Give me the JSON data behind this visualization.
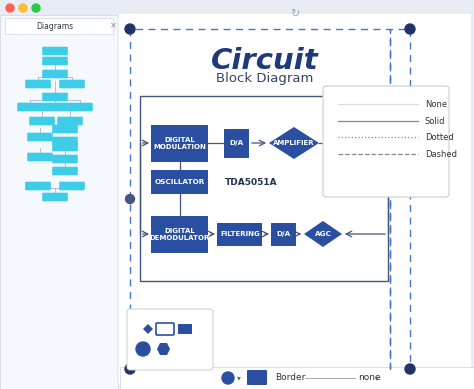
{
  "bg_color": "#eef2f8",
  "sidebar_bg": "#f5f8fc",
  "canvas_bg": "#ffffff",
  "topbar_bg": "#e8ecf4",
  "dark_blue": "#1e3a7a",
  "block_blue": "#2b4fa0",
  "line_color": "#44557a",
  "cyan": "#3ecde8",
  "title_circuit": "Circuit",
  "title_sub": "Block Diagram",
  "tda_label": "TDA5051A",
  "line_style_labels": [
    "None",
    "Solid",
    "Dotted",
    "Dashed"
  ],
  "border_label": "Border",
  "none_label": "none",
  "traffic_lights": [
    "#ff5f57",
    "#febc2e",
    "#28c840"
  ]
}
